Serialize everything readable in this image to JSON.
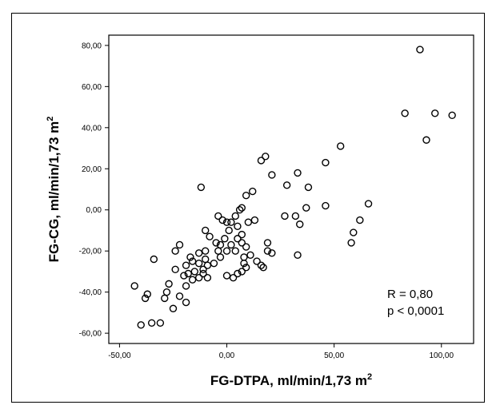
{
  "chart_data": {
    "type": "scatter",
    "title": "",
    "xlabel": "FG-DTPA, ml/min/1,73 m",
    "xlabel_sup": "2",
    "ylabel": "FG-CG, ml/min/1,73 m",
    "ylabel_sup": "2",
    "xlim": [
      -55,
      115
    ],
    "ylim": [
      -65,
      85
    ],
    "x_ticks": [
      -50,
      0,
      50,
      100
    ],
    "x_tick_labels": [
      "-50,00",
      "0,00",
      "50,00",
      "100,00"
    ],
    "y_ticks": [
      -60,
      -40,
      -20,
      0,
      20,
      40,
      60,
      80
    ],
    "y_tick_labels": [
      "-60,00",
      "-40,00",
      "-20,00",
      "0,00",
      "20,00",
      "40,00",
      "60,00",
      "80,00"
    ],
    "grid": false,
    "marker": "open-circle",
    "marker_color": "#000000",
    "annotations": [
      "R = 0,80",
      "p < 0,0001"
    ],
    "points": [
      [
        90,
        78
      ],
      [
        83,
        47
      ],
      [
        97,
        47
      ],
      [
        105,
        46
      ],
      [
        93,
        34
      ],
      [
        53,
        31
      ],
      [
        46,
        23
      ],
      [
        33,
        18
      ],
      [
        38,
        11
      ],
      [
        28,
        12
      ],
      [
        66,
        3
      ],
      [
        62,
        -5
      ],
      [
        59,
        -11
      ],
      [
        58,
        -16
      ],
      [
        46,
        2
      ],
      [
        37,
        1
      ],
      [
        32,
        -3
      ],
      [
        27,
        -3
      ],
      [
        34,
        -7
      ],
      [
        33,
        -22
      ],
      [
        18,
        26
      ],
      [
        16,
        24
      ],
      [
        21,
        17
      ],
      [
        12,
        9
      ],
      [
        9,
        7
      ],
      [
        7,
        1
      ],
      [
        6,
        0
      ],
      [
        10,
        -6
      ],
      [
        7,
        -12
      ],
      [
        4,
        -3
      ],
      [
        2,
        -6
      ],
      [
        0,
        -6
      ],
      [
        -2,
        -5
      ],
      [
        -4,
        -3
      ],
      [
        -10,
        -10
      ],
      [
        -12,
        11
      ],
      [
        -8,
        -13
      ],
      [
        -5,
        -16
      ],
      [
        -4,
        -20
      ],
      [
        -3,
        -23
      ],
      [
        -6,
        -26
      ],
      [
        -10,
        -20
      ],
      [
        -13,
        -21
      ],
      [
        -13,
        -26
      ],
      [
        -10,
        -24
      ],
      [
        -9,
        -27
      ],
      [
        -11,
        -29
      ],
      [
        -11,
        -31
      ],
      [
        -9,
        -33
      ],
      [
        -13,
        -33
      ],
      [
        -15,
        -30
      ],
      [
        -18,
        -31
      ],
      [
        -20,
        -32
      ],
      [
        -16,
        -34
      ],
      [
        -19,
        -37
      ],
      [
        -22,
        -17
      ],
      [
        -24,
        -20
      ],
      [
        -17,
        -23
      ],
      [
        -16,
        -25
      ],
      [
        -19,
        -27
      ],
      [
        -24,
        -29
      ],
      [
        -27,
        -36
      ],
      [
        -28,
        -40
      ],
      [
        -29,
        -43
      ],
      [
        -22,
        -42
      ],
      [
        -25,
        -48
      ],
      [
        -19,
        -45
      ],
      [
        -34,
        -24
      ],
      [
        -37,
        -41
      ],
      [
        -38,
        -43
      ],
      [
        -40,
        -56
      ],
      [
        -35,
        -55
      ],
      [
        -31,
        -55
      ],
      [
        -43,
        -37
      ],
      [
        4,
        -20
      ],
      [
        8,
        -23
      ],
      [
        8,
        -26
      ],
      [
        9,
        -28
      ],
      [
        7,
        -30
      ],
      [
        5,
        -31
      ],
      [
        3,
        -33
      ],
      [
        0,
        -32
      ],
      [
        0,
        -20
      ],
      [
        2,
        -17
      ],
      [
        5,
        -14
      ],
      [
        7,
        -16
      ],
      [
        9,
        -18
      ],
      [
        11,
        -22
      ],
      [
        14,
        -25
      ],
      [
        16,
        -27
      ],
      [
        17,
        -28
      ],
      [
        19,
        -20
      ],
      [
        19,
        -16
      ],
      [
        21,
        -21
      ],
      [
        1,
        -10
      ],
      [
        5,
        -8
      ],
      [
        -1,
        -14
      ],
      [
        -3,
        -17
      ],
      [
        13,
        -5
      ]
    ]
  }
}
